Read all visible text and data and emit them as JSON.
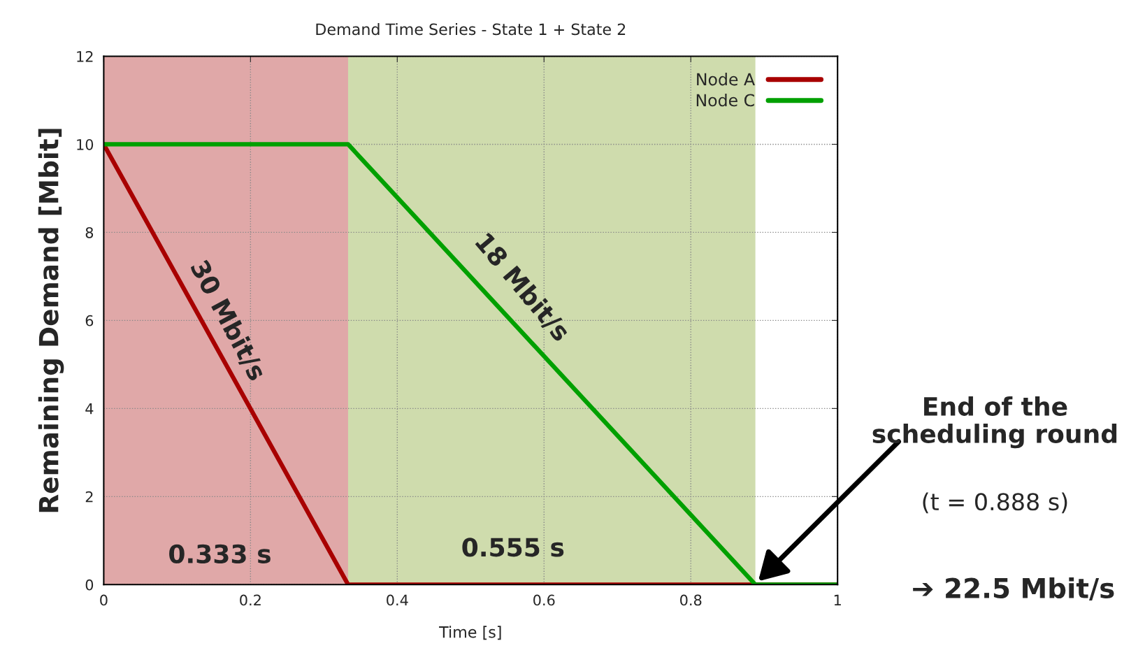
{
  "chart_data": {
    "type": "line",
    "title": "Demand Time Series - State 1 + State 2",
    "xlabel": "Time [s]",
    "ylabel": "Remaining Demand [Mbit]",
    "series": [
      {
        "name": "Node A",
        "color": "#a80000",
        "x": [
          0,
          0.333,
          1
        ],
        "values": [
          10,
          0,
          0
        ]
      },
      {
        "name": "Node C",
        "color": "#00a000",
        "x": [
          0,
          0.333,
          0.888,
          1
        ],
        "values": [
          10,
          10,
          0,
          0
        ]
      }
    ],
    "bands": [
      {
        "axis": "x",
        "from": 0,
        "to": 0.333,
        "color": "#e0a8a8"
      },
      {
        "axis": "x",
        "from": 0.333,
        "to": 0.888,
        "color": "#cfdcad"
      }
    ],
    "annotations": [
      "30 Mbit/s",
      "18 Mbit/s",
      "0.333 s",
      "0.555 s",
      "End of the scheduling round",
      "(t = 0.888 s)",
      "➔ 22.5 Mbit/s"
    ],
    "xlim": [
      0,
      1
    ],
    "ylim": [
      0,
      12
    ],
    "xticks": [
      0,
      0.2,
      0.4,
      0.6,
      0.8,
      1
    ],
    "yticks": [
      0,
      2,
      4,
      6,
      8,
      10,
      12
    ],
    "grid": true,
    "legend": "top right",
    "line_style": "solid",
    "marker": "none"
  }
}
